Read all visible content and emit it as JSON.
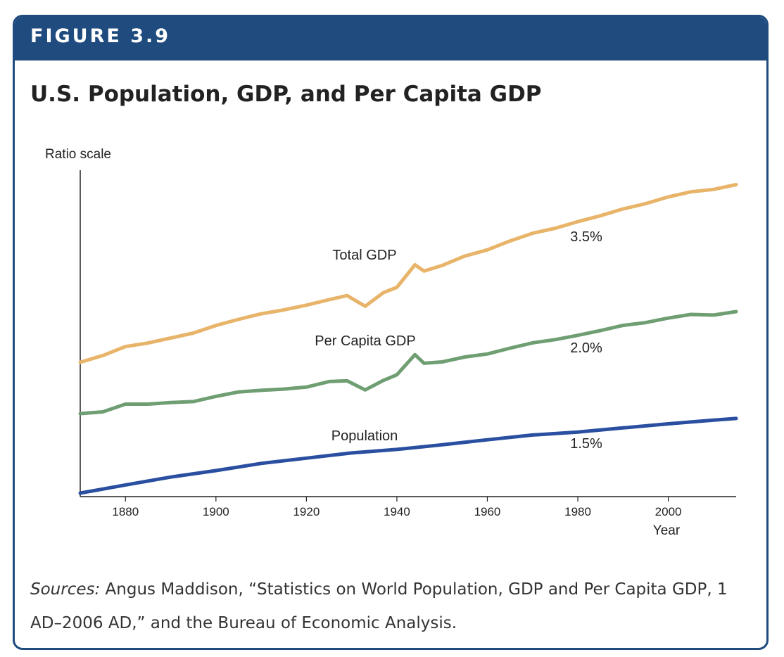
{
  "figure": {
    "label": "FIGURE 3.9",
    "title": "U.S. Population, GDP, and Per Capita GDP",
    "sources_label": "Sources:",
    "sources_text": " Angus Maddison, “Statistics on World Population, GDP and Per Capita GDP, 1 AD–2006 AD,” and the Bureau of Economic Analysis."
  },
  "chart_data": {
    "type": "line",
    "ylabel": "Ratio scale",
    "xlabel": "Year",
    "log_scale_y": true,
    "grid": false,
    "xlim": [
      1870,
      2015
    ],
    "x_ticks": [
      1880,
      1900,
      1920,
      1940,
      1960,
      1980,
      2000
    ],
    "series": [
      {
        "name": "Total GDP",
        "growth_label": "3.5%",
        "color": "#e8b46a",
        "x": [
          1870,
          1875,
          1880,
          1885,
          1890,
          1895,
          1900,
          1905,
          1910,
          1915,
          1920,
          1925,
          1929,
          1933,
          1937,
          1940,
          1944,
          1946,
          1950,
          1955,
          1960,
          1965,
          1970,
          1975,
          1980,
          1985,
          1990,
          1995,
          2000,
          2005,
          2010,
          2015
        ],
        "y": [
          1.0,
          1.12,
          1.3,
          1.38,
          1.5,
          1.63,
          1.85,
          2.05,
          2.25,
          2.4,
          2.6,
          2.85,
          3.05,
          2.55,
          3.2,
          3.5,
          5.1,
          4.6,
          5.05,
          5.9,
          6.55,
          7.6,
          8.65,
          9.4,
          10.5,
          11.6,
          13.0,
          14.2,
          15.9,
          17.3,
          18.0,
          19.5
        ]
      },
      {
        "name": "Per Capita GDP",
        "growth_label": "2.0%",
        "color": "#6f9e72",
        "x": [
          1870,
          1875,
          1880,
          1885,
          1890,
          1895,
          1900,
          1905,
          1910,
          1915,
          1920,
          1925,
          1929,
          1933,
          1937,
          1940,
          1944,
          1946,
          1950,
          1955,
          1960,
          1965,
          1970,
          1975,
          1980,
          1985,
          1990,
          1995,
          2000,
          2005,
          2010,
          2015
        ],
        "y": [
          1.0,
          1.03,
          1.17,
          1.17,
          1.2,
          1.22,
          1.33,
          1.43,
          1.47,
          1.5,
          1.55,
          1.7,
          1.72,
          1.48,
          1.73,
          1.9,
          2.65,
          2.3,
          2.35,
          2.55,
          2.68,
          2.95,
          3.22,
          3.4,
          3.65,
          3.95,
          4.3,
          4.5,
          4.85,
          5.15,
          5.1,
          5.4
        ]
      },
      {
        "name": "Population",
        "growth_label": "1.5%",
        "color": "#2a4fa0",
        "x": [
          1870,
          1880,
          1890,
          1900,
          1910,
          1920,
          1930,
          1940,
          1950,
          1960,
          1970,
          1980,
          1990,
          2000,
          2010,
          2015
        ],
        "y": [
          1.0,
          1.25,
          1.55,
          1.85,
          2.25,
          2.6,
          3.0,
          3.3,
          3.75,
          4.3,
          4.9,
          5.3,
          5.95,
          6.65,
          7.35,
          7.7
        ]
      }
    ]
  }
}
